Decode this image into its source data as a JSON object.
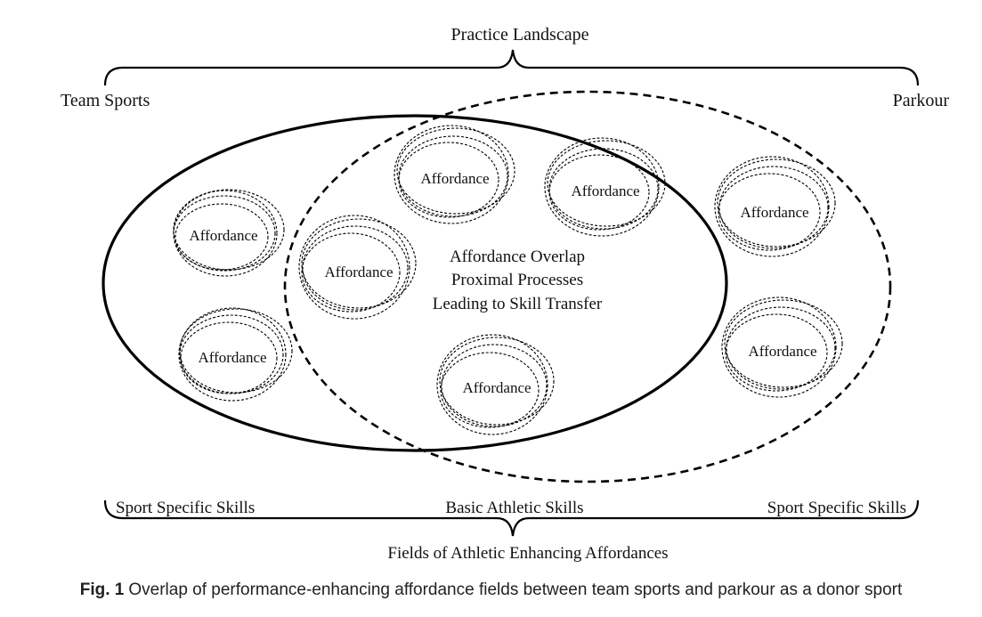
{
  "diagram": {
    "top_label": "Practice Landscape",
    "left_label": "Team Sports",
    "right_label": "Parkour",
    "affordance_label": "Affordance",
    "center_lines": [
      "Affordance Overlap",
      "Proximal Processes",
      "Leading to Skill Transfer"
    ],
    "bottom_left": "Sport Specific Skills",
    "bottom_center": "Basic Athletic Skills",
    "bottom_right": "Sport Specific Skills",
    "bottom_label": "Fields of Athletic Enhancing Affordances"
  },
  "caption": {
    "fig_label": "Fig. 1",
    "text": "Overlap of performance-enhancing affordance fields between team sports and parkour as a donor sport"
  }
}
